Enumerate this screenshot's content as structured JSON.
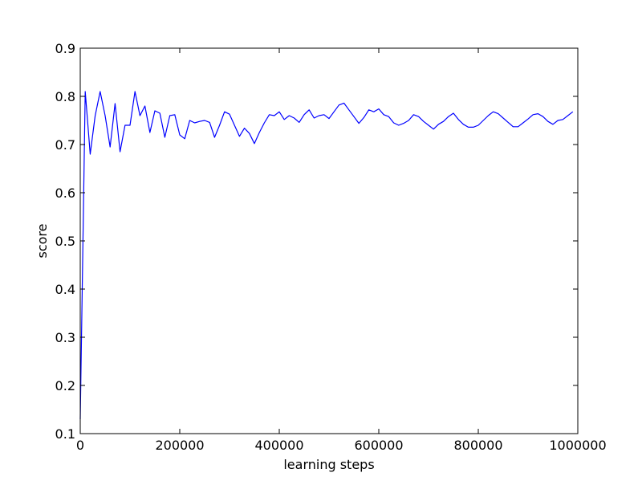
{
  "chart_data": {
    "type": "line",
    "title": "",
    "xlabel": "learning steps",
    "ylabel": "score",
    "xlim": [
      0,
      1000000
    ],
    "ylim": [
      0.1,
      0.9
    ],
    "grid": false,
    "legend": null,
    "x_ticks": [
      0,
      200000,
      400000,
      600000,
      800000,
      1000000
    ],
    "x_tick_labels": [
      "0",
      "200000",
      "400000",
      "600000",
      "800000",
      "1000000"
    ],
    "y_ticks": [
      0.1,
      0.2,
      0.3,
      0.4,
      0.5,
      0.6,
      0.7,
      0.8,
      0.9
    ],
    "y_tick_labels": [
      "0.1",
      "0.2",
      "0.3",
      "0.4",
      "0.5",
      "0.6",
      "0.7",
      "0.8",
      "0.9"
    ],
    "series": [
      {
        "color": "#0000ff",
        "x": [
          0,
          10000,
          20000,
          30000,
          40000,
          50000,
          60000,
          70000,
          80000,
          90000,
          100000,
          110000,
          120000,
          130000,
          140000,
          150000,
          160000,
          170000,
          180000,
          190000,
          200000,
          210000,
          220000,
          230000,
          240000,
          250000,
          260000,
          270000,
          280000,
          290000,
          300000,
          310000,
          320000,
          330000,
          340000,
          350000,
          360000,
          370000,
          380000,
          390000,
          400000,
          410000,
          420000,
          430000,
          440000,
          450000,
          460000,
          470000,
          480000,
          490000,
          500000,
          510000,
          520000,
          530000,
          540000,
          550000,
          560000,
          570000,
          580000,
          590000,
          600000,
          610000,
          620000,
          630000,
          640000,
          650000,
          660000,
          670000,
          680000,
          690000,
          700000,
          710000,
          720000,
          730000,
          740000,
          750000,
          760000,
          770000,
          780000,
          790000,
          800000,
          810000,
          820000,
          830000,
          840000,
          850000,
          860000,
          870000,
          880000,
          890000,
          900000,
          910000,
          920000,
          930000,
          940000,
          950000,
          960000,
          970000,
          980000,
          990000
        ],
        "y": [
          0.13,
          0.81,
          0.68,
          0.76,
          0.81,
          0.76,
          0.695,
          0.785,
          0.685,
          0.74,
          0.74,
          0.81,
          0.76,
          0.78,
          0.725,
          0.77,
          0.765,
          0.715,
          0.76,
          0.762,
          0.72,
          0.712,
          0.75,
          0.745,
          0.748,
          0.75,
          0.746,
          0.715,
          0.74,
          0.768,
          0.763,
          0.74,
          0.717,
          0.734,
          0.723,
          0.702,
          0.725,
          0.745,
          0.762,
          0.76,
          0.768,
          0.752,
          0.76,
          0.755,
          0.746,
          0.762,
          0.772,
          0.755,
          0.76,
          0.762,
          0.754,
          0.768,
          0.782,
          0.786,
          0.772,
          0.758,
          0.744,
          0.756,
          0.772,
          0.768,
          0.774,
          0.762,
          0.758,
          0.745,
          0.74,
          0.744,
          0.75,
          0.762,
          0.758,
          0.748,
          0.74,
          0.732,
          0.742,
          0.748,
          0.758,
          0.765,
          0.752,
          0.742,
          0.736,
          0.736,
          0.74,
          0.75,
          0.76,
          0.768,
          0.764,
          0.755,
          0.746,
          0.737,
          0.737,
          0.745,
          0.753,
          0.762,
          0.764,
          0.758,
          0.748,
          0.742,
          0.75,
          0.752,
          0.76,
          0.768
        ]
      }
    ]
  }
}
